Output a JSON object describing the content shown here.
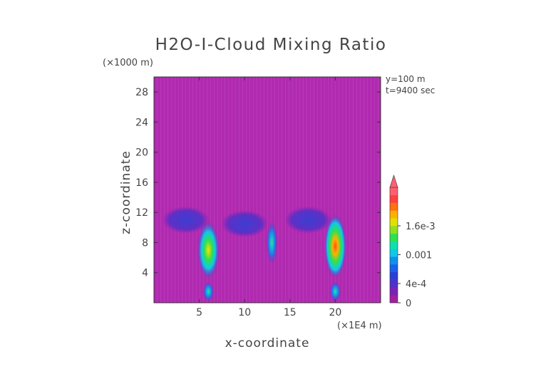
{
  "chart_data": {
    "type": "heatmap",
    "title": "H2O-I-Cloud Mixing Ratio",
    "xlabel": "x-coordinate",
    "ylabel": "z-coordinate",
    "x_unit": "(×1E4 m)",
    "y_unit": "(×1000 m)",
    "xlim": [
      0,
      25
    ],
    "ylim": [
      0,
      30
    ],
    "x_ticks": [
      "5",
      "10",
      "15",
      "20"
    ],
    "y_ticks": [
      "4",
      "8",
      "12",
      "16",
      "20",
      "24",
      "28"
    ],
    "annotations": [
      "y=100 m",
      "t=9400 sec"
    ],
    "colorbar": {
      "tick_labels": [
        "1.6e-3",
        "0.001",
        "4e-4",
        "0"
      ],
      "tick_values": [
        0.0016,
        0.001,
        0.0004,
        0
      ],
      "max": 0.0024,
      "extend": "max",
      "colors": [
        "#a020a0",
        "#7a22b8",
        "#5030c8",
        "#2840d8",
        "#1a60e8",
        "#1090ee",
        "#10c8e8",
        "#10e0b0",
        "#30e050",
        "#90e020",
        "#e0e000",
        "#ffb000",
        "#ff7010",
        "#ff4040",
        "#ff6070"
      ]
    },
    "features": [
      {
        "x": 6.0,
        "z": 7.0,
        "value": 0.0014
      },
      {
        "x": 20.0,
        "z": 7.5,
        "value": 0.0018
      },
      {
        "x": 13.0,
        "z": 8.0,
        "value": 0.0008
      },
      {
        "x": 6.0,
        "z": 1.5,
        "value": 0.0006
      },
      {
        "x": 20.0,
        "z": 1.5,
        "value": 0.0006
      },
      {
        "x": 3.5,
        "z": 11.0,
        "value": 0.0003
      },
      {
        "x": 10.0,
        "z": 10.5,
        "value": 0.0003
      },
      {
        "x": 17.0,
        "z": 11.0,
        "value": 0.0002
      }
    ]
  }
}
